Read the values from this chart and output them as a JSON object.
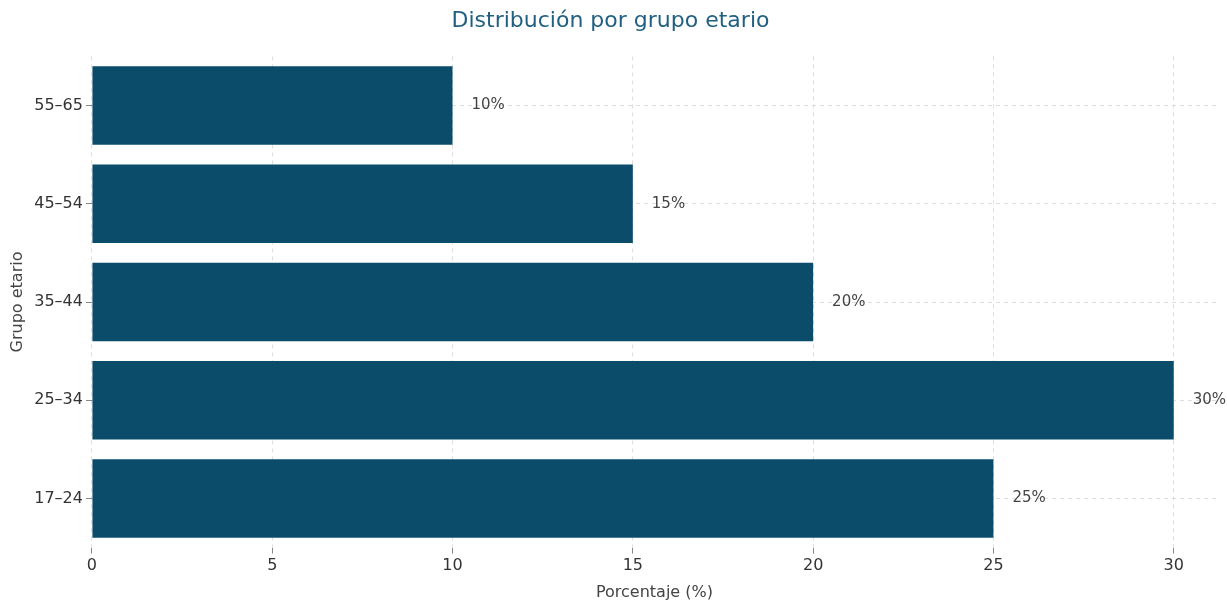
{
  "chart_data": {
    "type": "bar",
    "orientation": "horizontal",
    "title": "Distribución por grupo etario",
    "xlabel": "Porcentaje (%)",
    "ylabel": "Grupo etario",
    "categories": [
      "55–65",
      "45–54",
      "35–44",
      "25–34",
      "17–24"
    ],
    "values": [
      10,
      15,
      20,
      30,
      25
    ],
    "color": "#0b4c6b",
    "value_labels": [
      "10%",
      "15%",
      "20%",
      "30%",
      "25%"
    ],
    "xlim": [
      0,
      31.2
    ],
    "xticks": [
      0,
      5,
      10,
      15,
      20,
      25,
      30
    ],
    "grid": true,
    "legend": false
  }
}
